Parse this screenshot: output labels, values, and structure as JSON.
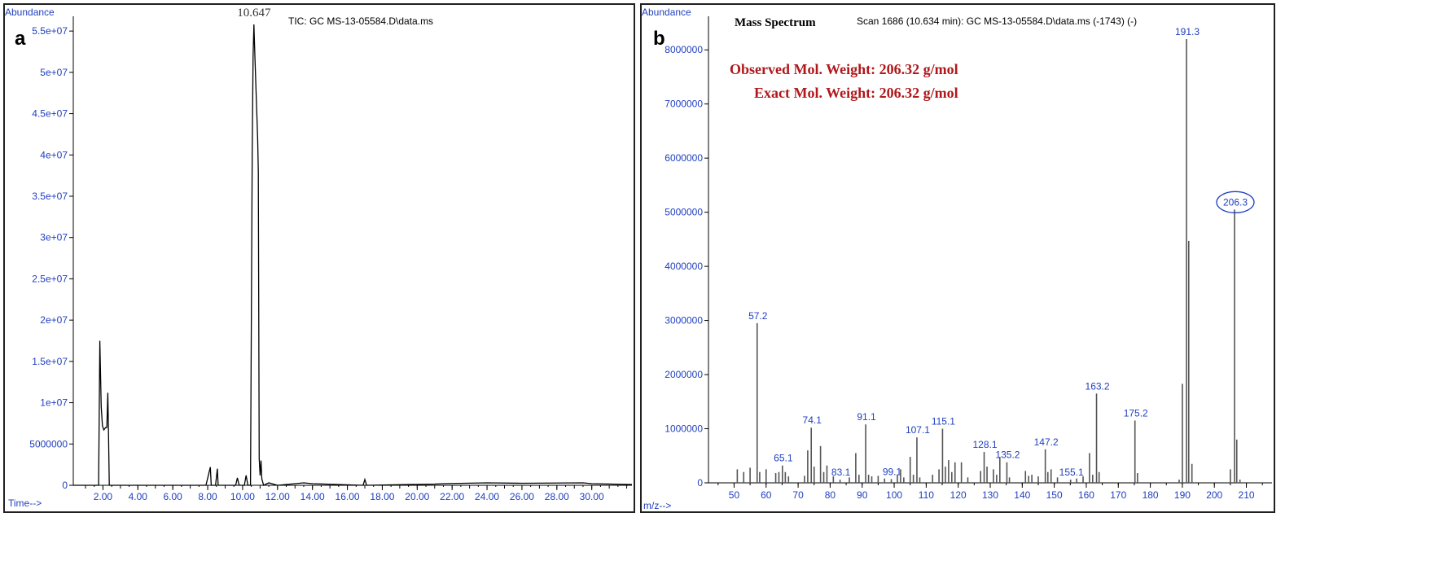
{
  "chart_data": [
    {
      "type": "line",
      "panel_label": "a",
      "title": "TIC: GC MS-13-05584.D\\data.ms",
      "ylabel": "Abundance",
      "xlabel": "Time-->",
      "xlim": [
        0.3,
        32.3
      ],
      "ylim": [
        0,
        56000000
      ],
      "x_ticks": [
        2,
        4,
        6,
        8,
        10,
        12,
        14,
        16,
        18,
        20,
        22,
        24,
        26,
        28,
        30
      ],
      "x_tick_labels": [
        "2.00",
        "4.00",
        "6.00",
        "8.00",
        "10.00",
        "12.00",
        "14.00",
        "16.00",
        "18.00",
        "20.00",
        "22.00",
        "24.00",
        "26.00",
        "28.00",
        "30.00"
      ],
      "y_ticks": [
        0,
        5000000,
        10000000,
        15000000,
        20000000,
        25000000,
        30000000,
        35000000,
        40000000,
        45000000,
        50000000,
        55000000
      ],
      "y_tick_labels": [
        "0",
        "5000000",
        "1e+07",
        "1.5e+07",
        "2e+07",
        "2.5e+07",
        "3e+07",
        "3.5e+07",
        "4e+07",
        "4.5e+07",
        "5e+07",
        "5.5e+07"
      ],
      "peak_annotation": {
        "label": "10.647",
        "x": 10.647,
        "y": 55800000
      },
      "series": [
        {
          "x": [
            0.3,
            1.75,
            1.82,
            1.9,
            1.97,
            2.05,
            2.15,
            2.22,
            2.28,
            2.32,
            2.36,
            2.5,
            4.0,
            6.0,
            7.9,
            8.15,
            8.2,
            8.25,
            8.45,
            8.55,
            8.6,
            8.65,
            9.0,
            9.6,
            9.7,
            9.8,
            10.1,
            10.2,
            10.3,
            10.45,
            10.55,
            10.6,
            10.647,
            10.7,
            10.78,
            10.86,
            10.9,
            10.95,
            11.0,
            11.05,
            11.1,
            11.2,
            11.5,
            12.0,
            13.5,
            14.0,
            16.9,
            17.0,
            17.1,
            21.0,
            21.5,
            24.0,
            26.0,
            29.5,
            30.0,
            32.3
          ],
          "y": [
            0,
            0,
            17500000,
            9500000,
            7200000,
            6700000,
            7000000,
            7000000,
            11200000,
            6000000,
            0,
            0,
            0,
            0,
            0,
            2200000,
            0,
            0,
            0,
            2000000,
            0,
            0,
            0,
            0,
            900000,
            0,
            0,
            1200000,
            0,
            0,
            40000000,
            52000000,
            55800000,
            52000000,
            47000000,
            42000000,
            38000000,
            3200000,
            1200000,
            3000000,
            800000,
            0,
            300000,
            0,
            300000,
            200000,
            0,
            700000,
            0,
            150000,
            200000,
            300000,
            250000,
            300000,
            200000,
            100000
          ]
        }
      ]
    },
    {
      "type": "bar",
      "panel_label": "b",
      "title": "Mass Spectrum",
      "subtitle": "Scan 1686 (10.634 min): GC MS-13-05584.D\\data.ms (-1743) (-)",
      "ylabel": "Abundance",
      "xlabel": "m/z-->",
      "xlim": [
        42,
        218
      ],
      "ylim": [
        0,
        8500000
      ],
      "x_ticks": [
        50,
        60,
        70,
        80,
        90,
        100,
        110,
        120,
        130,
        140,
        150,
        160,
        170,
        180,
        190,
        200,
        210
      ],
      "x_tick_labels": [
        "50",
        "60",
        "70",
        "80",
        "90",
        "100",
        "110",
        "120",
        "130",
        "140",
        "150",
        "160",
        "170",
        "180",
        "190",
        "200",
        "210"
      ],
      "y_ticks": [
        0,
        1000000,
        2000000,
        3000000,
        4000000,
        5000000,
        6000000,
        7000000,
        8000000
      ],
      "y_tick_labels": [
        "0",
        "1000000",
        "2000000",
        "3000000",
        "4000000",
        "5000000",
        "6000000",
        "7000000",
        "8000000"
      ],
      "annotation_lines": [
        "Observed Mol. Weight: 206.32 g/mol",
        "Exact Mol. Weight: 206.32 g/mol"
      ],
      "highlighted_peak": "206.3",
      "peaks": [
        {
          "mz": 51,
          "intensity": 250000
        },
        {
          "mz": 53,
          "intensity": 200000
        },
        {
          "mz": 55,
          "intensity": 280000
        },
        {
          "mz": 57.2,
          "intensity": 2950000,
          "label": "57.2"
        },
        {
          "mz": 58,
          "intensity": 200000
        },
        {
          "mz": 60,
          "intensity": 250000
        },
        {
          "mz": 63,
          "intensity": 180000
        },
        {
          "mz": 64,
          "intensity": 200000
        },
        {
          "mz": 65.1,
          "intensity": 320000,
          "label": "65.1"
        },
        {
          "mz": 66,
          "intensity": 200000
        },
        {
          "mz": 67,
          "intensity": 120000
        },
        {
          "mz": 72,
          "intensity": 130000
        },
        {
          "mz": 73,
          "intensity": 600000
        },
        {
          "mz": 74.1,
          "intensity": 1020000,
          "label": "74.1"
        },
        {
          "mz": 75,
          "intensity": 300000
        },
        {
          "mz": 77,
          "intensity": 680000
        },
        {
          "mz": 78,
          "intensity": 200000
        },
        {
          "mz": 79,
          "intensity": 320000
        },
        {
          "mz": 81,
          "intensity": 120000
        },
        {
          "mz": 83.1,
          "intensity": 60000,
          "label": "83.1"
        },
        {
          "mz": 86,
          "intensity": 100000
        },
        {
          "mz": 88,
          "intensity": 550000
        },
        {
          "mz": 89,
          "intensity": 150000
        },
        {
          "mz": 91.1,
          "intensity": 1080000,
          "label": "91.1"
        },
        {
          "mz": 92,
          "intensity": 150000
        },
        {
          "mz": 93,
          "intensity": 120000
        },
        {
          "mz": 95,
          "intensity": 130000
        },
        {
          "mz": 97,
          "intensity": 80000
        },
        {
          "mz": 99.1,
          "intensity": 70000,
          "label": "99.1"
        },
        {
          "mz": 101,
          "intensity": 150000
        },
        {
          "mz": 102,
          "intensity": 250000
        },
        {
          "mz": 103,
          "intensity": 100000
        },
        {
          "mz": 105,
          "intensity": 480000
        },
        {
          "mz": 106,
          "intensity": 150000
        },
        {
          "mz": 107.1,
          "intensity": 840000,
          "label": "107.1"
        },
        {
          "mz": 108,
          "intensity": 100000
        },
        {
          "mz": 112,
          "intensity": 150000
        },
        {
          "mz": 114,
          "intensity": 250000
        },
        {
          "mz": 115.1,
          "intensity": 1000000,
          "label": "115.1"
        },
        {
          "mz": 116,
          "intensity": 300000
        },
        {
          "mz": 117,
          "intensity": 420000
        },
        {
          "mz": 118,
          "intensity": 200000
        },
        {
          "mz": 119,
          "intensity": 380000
        },
        {
          "mz": 121,
          "intensity": 380000
        },
        {
          "mz": 123,
          "intensity": 100000
        },
        {
          "mz": 127,
          "intensity": 220000
        },
        {
          "mz": 128.1,
          "intensity": 570000,
          "label": "128.1"
        },
        {
          "mz": 129,
          "intensity": 300000
        },
        {
          "mz": 131,
          "intensity": 250000
        },
        {
          "mz": 132,
          "intensity": 150000
        },
        {
          "mz": 133,
          "intensity": 480000
        },
        {
          "mz": 135.2,
          "intensity": 380000,
          "label": "135.2"
        },
        {
          "mz": 136,
          "intensity": 100000
        },
        {
          "mz": 141,
          "intensity": 220000
        },
        {
          "mz": 142,
          "intensity": 130000
        },
        {
          "mz": 143,
          "intensity": 150000
        },
        {
          "mz": 145,
          "intensity": 120000
        },
        {
          "mz": 147.2,
          "intensity": 620000,
          "label": "147.2"
        },
        {
          "mz": 148,
          "intensity": 200000
        },
        {
          "mz": 149,
          "intensity": 250000
        },
        {
          "mz": 151,
          "intensity": 100000
        },
        {
          "mz": 155.1,
          "intensity": 60000,
          "label": "155.1"
        },
        {
          "mz": 157,
          "intensity": 80000
        },
        {
          "mz": 159,
          "intensity": 120000
        },
        {
          "mz": 161,
          "intensity": 550000
        },
        {
          "mz": 162,
          "intensity": 150000
        },
        {
          "mz": 163.2,
          "intensity": 1650000,
          "label": "163.2"
        },
        {
          "mz": 164,
          "intensity": 200000
        },
        {
          "mz": 175.2,
          "intensity": 1150000,
          "label": "175.2"
        },
        {
          "mz": 176,
          "intensity": 180000
        },
        {
          "mz": 189,
          "intensity": 60000
        },
        {
          "mz": 190,
          "intensity": 1830000
        },
        {
          "mz": 191.3,
          "intensity": 8200000,
          "label": "191.3"
        },
        {
          "mz": 192,
          "intensity": 4470000
        },
        {
          "mz": 193,
          "intensity": 350000
        },
        {
          "mz": 205,
          "intensity": 250000
        },
        {
          "mz": 206.3,
          "intensity": 5050000,
          "label": "206.3"
        },
        {
          "mz": 207,
          "intensity": 800000
        },
        {
          "mz": 208,
          "intensity": 60000
        }
      ]
    }
  ],
  "colors": {
    "axis": "#000000",
    "label_blue": "#1f3fbf",
    "annotation_red": "#b0181b",
    "trace": "#000000",
    "bar": "#555555"
  }
}
